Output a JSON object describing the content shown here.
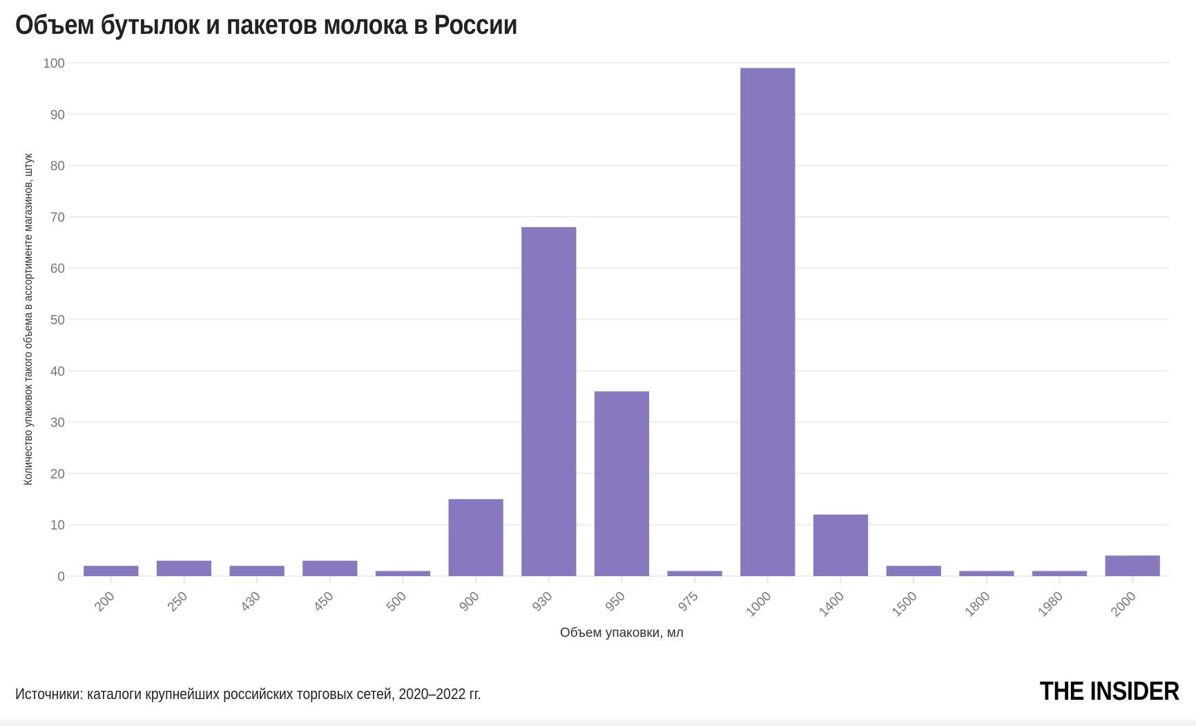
{
  "chart_data": {
    "type": "bar",
    "title": "Объем бутылок и пакетов молока в России",
    "xlabel": "Объем упаковки, мл",
    "ylabel": "Количество упаковок такого объема в ассортименте магазинов, штук",
    "categories": [
      "200",
      "250",
      "430",
      "450",
      "500",
      "900",
      "930",
      "950",
      "975",
      "1000",
      "1400",
      "1500",
      "1800",
      "1980",
      "2000"
    ],
    "values": [
      2,
      3,
      2,
      3,
      1,
      15,
      68,
      36,
      1,
      99,
      12,
      2,
      1,
      1,
      4
    ],
    "ylim": [
      0,
      100
    ],
    "yticks": [
      0,
      10,
      20,
      30,
      40,
      50,
      60,
      70,
      80,
      90,
      100
    ],
    "grid": true,
    "bar_color": "#8879bf"
  },
  "footer": {
    "source": "Источники: каталоги крупнейших российских торговых сетей, 2020–2022 гг.",
    "logo": "THE INSIDER"
  }
}
